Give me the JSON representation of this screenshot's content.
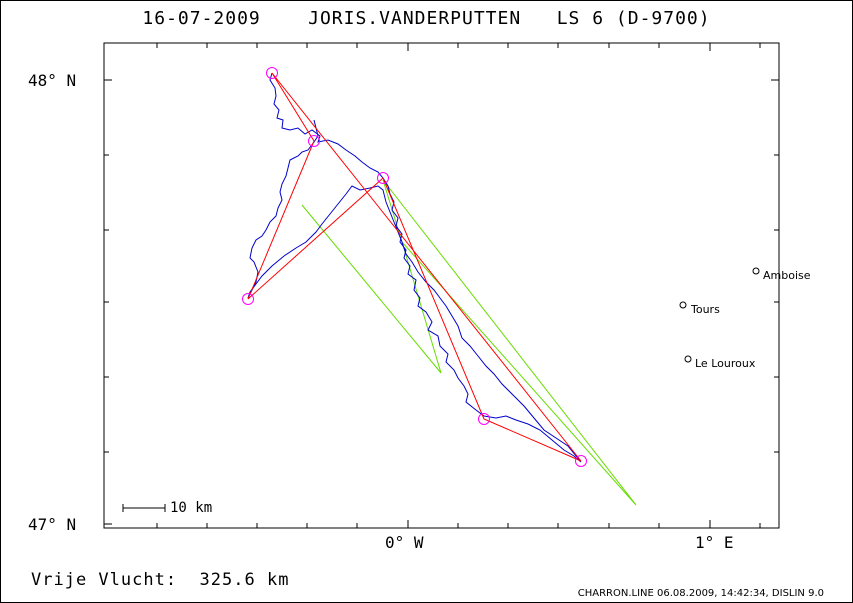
{
  "header": {
    "date": "16-07-2009",
    "pilot": "JORIS.VANDERPUTTEN",
    "glider": "LS 6 (D-9700)"
  },
  "map": {
    "lat_labels": [
      "48° N",
      "47° N"
    ],
    "lon_labels": [
      "0° W",
      "1° E"
    ],
    "scale_label": "10 km",
    "cities": [
      {
        "name": "Amboise"
      },
      {
        "name": "Tours"
      },
      {
        "name": "Le Louroux"
      }
    ],
    "colors": {
      "track": "#0000cc",
      "task": "#ff0000",
      "turnpoint": "#ff00ff",
      "green_line": "#66dd00"
    }
  },
  "summary": {
    "label": "Vrije Vlucht:",
    "distance": "325.6 km"
  },
  "footer": {
    "text": "CHARRON.LINE 06.08.2009, 14:42:34, DISLIN 9.0"
  }
}
